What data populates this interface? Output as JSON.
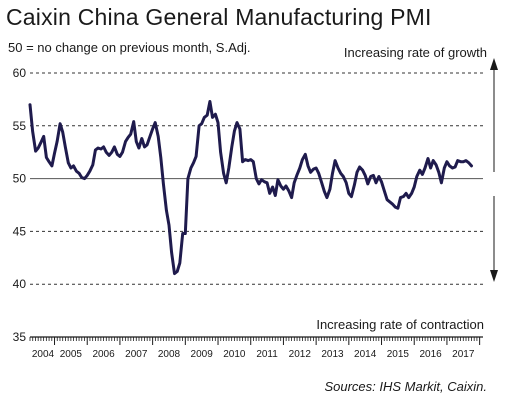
{
  "chart_data": {
    "type": "line",
    "title": "Caixin China General Manufacturing PMI",
    "subtitle": "50 = no change on previous month, S.Adj.",
    "annotations": {
      "upper": "Increasing rate of growth",
      "lower": "Increasing rate of contraction"
    },
    "source": "Sources: IHS Markit, Caixin.",
    "ylim": [
      35,
      60
    ],
    "y_ticks": [
      "35",
      "40",
      "45",
      "50",
      "55",
      "60"
    ],
    "x_ticks": [
      "2004",
      "2005",
      "2006",
      "2007",
      "2008",
      "2009",
      "2010",
      "2011",
      "2012",
      "2013",
      "2014",
      "2015",
      "2016",
      "2017"
    ],
    "xlim": [
      2004.25,
      2017.95
    ],
    "grid": "dashed-horizontal",
    "reference_line": 50,
    "line_color": "#1f1b4d",
    "series": [
      {
        "points": [
          [
            2004.25,
            57.0
          ],
          [
            2004.33,
            54.5
          ],
          [
            2004.42,
            52.6
          ],
          [
            2004.5,
            52.9
          ],
          [
            2004.58,
            53.4
          ],
          [
            2004.67,
            54.0
          ],
          [
            2004.75,
            52.0
          ],
          [
            2004.83,
            51.6
          ],
          [
            2004.92,
            51.2
          ],
          [
            2005.0,
            52.4
          ],
          [
            2005.08,
            53.5
          ],
          [
            2005.17,
            55.2
          ],
          [
            2005.25,
            54.4
          ],
          [
            2005.33,
            53.0
          ],
          [
            2005.42,
            51.5
          ],
          [
            2005.5,
            51.0
          ],
          [
            2005.58,
            51.2
          ],
          [
            2005.67,
            50.7
          ],
          [
            2005.75,
            50.5
          ],
          [
            2005.83,
            50.1
          ],
          [
            2005.92,
            50.0
          ],
          [
            2006.0,
            50.3
          ],
          [
            2006.08,
            50.7
          ],
          [
            2006.17,
            51.3
          ],
          [
            2006.25,
            52.7
          ],
          [
            2006.33,
            52.9
          ],
          [
            2006.42,
            52.8
          ],
          [
            2006.5,
            53.0
          ],
          [
            2006.58,
            52.5
          ],
          [
            2006.67,
            52.2
          ],
          [
            2006.75,
            52.5
          ],
          [
            2006.83,
            53.0
          ],
          [
            2006.92,
            52.3
          ],
          [
            2007.0,
            52.1
          ],
          [
            2007.08,
            52.5
          ],
          [
            2007.17,
            53.5
          ],
          [
            2007.25,
            53.9
          ],
          [
            2007.33,
            54.2
          ],
          [
            2007.42,
            55.4
          ],
          [
            2007.5,
            53.5
          ],
          [
            2007.58,
            52.9
          ],
          [
            2007.67,
            53.8
          ],
          [
            2007.75,
            53.0
          ],
          [
            2007.83,
            53.2
          ],
          [
            2007.92,
            54.0
          ],
          [
            2008.0,
            54.7
          ],
          [
            2008.08,
            55.3
          ],
          [
            2008.17,
            54.0
          ],
          [
            2008.25,
            52.0
          ],
          [
            2008.33,
            49.5
          ],
          [
            2008.42,
            47.0
          ],
          [
            2008.5,
            45.6
          ],
          [
            2008.58,
            43.0
          ],
          [
            2008.67,
            41.0
          ],
          [
            2008.75,
            41.2
          ],
          [
            2008.83,
            42.0
          ],
          [
            2008.92,
            44.8
          ],
          [
            2009.0,
            44.8
          ],
          [
            2009.08,
            50.0
          ],
          [
            2009.17,
            51.0
          ],
          [
            2009.25,
            51.5
          ],
          [
            2009.33,
            52.1
          ],
          [
            2009.42,
            55.0
          ],
          [
            2009.5,
            55.2
          ],
          [
            2009.58,
            55.8
          ],
          [
            2009.67,
            56.0
          ],
          [
            2009.75,
            57.3
          ],
          [
            2009.83,
            55.8
          ],
          [
            2009.92,
            56.1
          ],
          [
            2010.0,
            55.3
          ],
          [
            2010.08,
            52.5
          ],
          [
            2010.17,
            50.5
          ],
          [
            2010.25,
            49.6
          ],
          [
            2010.33,
            51.0
          ],
          [
            2010.42,
            53.0
          ],
          [
            2010.5,
            54.5
          ],
          [
            2010.58,
            55.3
          ],
          [
            2010.67,
            54.7
          ],
          [
            2010.75,
            51.6
          ],
          [
            2010.83,
            51.8
          ],
          [
            2010.92,
            51.7
          ],
          [
            2011.0,
            51.8
          ],
          [
            2011.08,
            51.6
          ],
          [
            2011.17,
            50.0
          ],
          [
            2011.25,
            49.5
          ],
          [
            2011.33,
            49.9
          ],
          [
            2011.42,
            49.7
          ],
          [
            2011.5,
            49.6
          ],
          [
            2011.58,
            48.6
          ],
          [
            2011.67,
            49.2
          ],
          [
            2011.75,
            48.4
          ],
          [
            2011.83,
            49.9
          ],
          [
            2011.92,
            49.3
          ],
          [
            2012.0,
            49.0
          ],
          [
            2012.08,
            49.3
          ],
          [
            2012.17,
            48.8
          ],
          [
            2012.25,
            48.2
          ],
          [
            2012.33,
            49.6
          ],
          [
            2012.42,
            50.4
          ],
          [
            2012.5,
            51.0
          ],
          [
            2012.58,
            51.8
          ],
          [
            2012.67,
            52.3
          ],
          [
            2012.75,
            51.2
          ],
          [
            2012.83,
            50.6
          ],
          [
            2012.92,
            50.9
          ],
          [
            2013.0,
            51.0
          ],
          [
            2013.08,
            50.5
          ],
          [
            2013.17,
            49.6
          ],
          [
            2013.25,
            48.8
          ],
          [
            2013.33,
            48.2
          ],
          [
            2013.42,
            49.0
          ],
          [
            2013.5,
            50.5
          ],
          [
            2013.58,
            51.7
          ],
          [
            2013.67,
            51.0
          ],
          [
            2013.75,
            50.5
          ],
          [
            2013.83,
            50.2
          ],
          [
            2013.92,
            49.6
          ],
          [
            2014.0,
            48.6
          ],
          [
            2014.08,
            48.3
          ],
          [
            2014.17,
            49.4
          ],
          [
            2014.25,
            50.6
          ],
          [
            2014.33,
            51.1
          ],
          [
            2014.42,
            50.8
          ],
          [
            2014.5,
            50.3
          ],
          [
            2014.58,
            49.5
          ],
          [
            2014.67,
            50.2
          ],
          [
            2014.75,
            50.3
          ],
          [
            2014.83,
            49.6
          ],
          [
            2014.92,
            50.2
          ],
          [
            2015.0,
            49.7
          ],
          [
            2015.08,
            48.9
          ],
          [
            2015.17,
            48.0
          ],
          [
            2015.25,
            47.8
          ],
          [
            2015.33,
            47.6
          ],
          [
            2015.42,
            47.3
          ],
          [
            2015.5,
            47.2
          ],
          [
            2015.58,
            48.2
          ],
          [
            2015.67,
            48.3
          ],
          [
            2015.75,
            48.6
          ],
          [
            2015.83,
            48.2
          ],
          [
            2015.92,
            48.6
          ],
          [
            2016.0,
            49.2
          ],
          [
            2016.08,
            50.2
          ],
          [
            2016.17,
            50.8
          ],
          [
            2016.25,
            50.4
          ],
          [
            2016.33,
            51.0
          ],
          [
            2016.42,
            51.9
          ],
          [
            2016.5,
            51.0
          ],
          [
            2016.58,
            51.7
          ],
          [
            2016.67,
            51.3
          ],
          [
            2016.75,
            50.6
          ],
          [
            2016.83,
            49.6
          ],
          [
            2016.92,
            51.0
          ],
          [
            2017.0,
            51.6
          ],
          [
            2017.08,
            51.2
          ],
          [
            2017.17,
            51.0
          ],
          [
            2017.25,
            51.1
          ],
          [
            2017.33,
            51.7
          ],
          [
            2017.42,
            51.6
          ],
          [
            2017.5,
            51.6
          ],
          [
            2017.58,
            51.7
          ],
          [
            2017.67,
            51.5
          ],
          [
            2017.75,
            51.2
          ]
        ]
      }
    ]
  }
}
